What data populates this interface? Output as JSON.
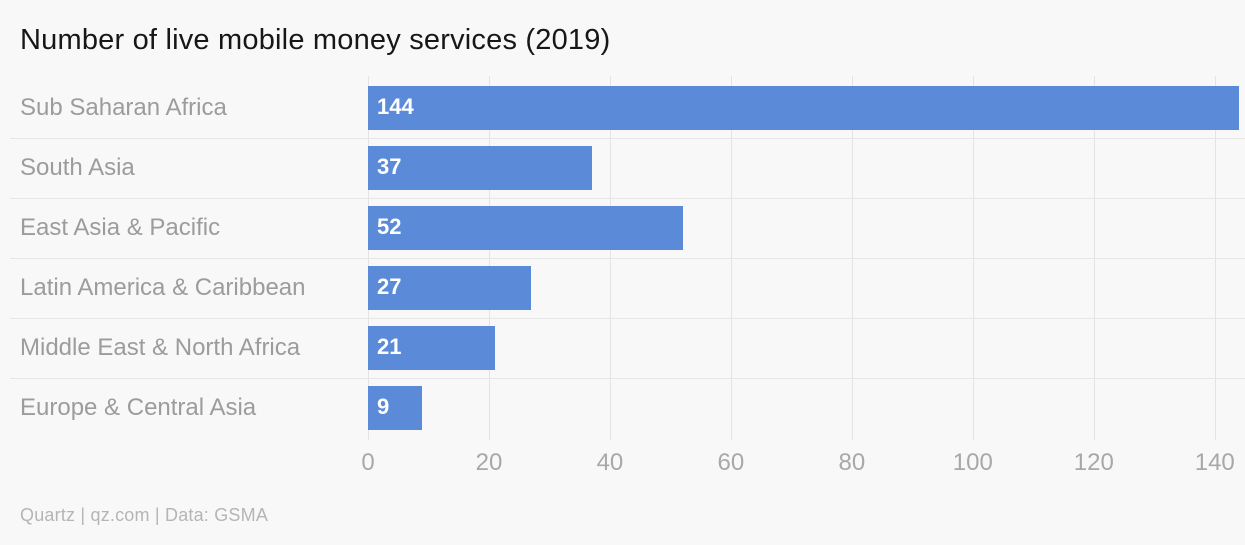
{
  "title": "Number of live mobile money services (2019)",
  "attribution": "Quartz | qz.com | Data: GSMA",
  "colors": {
    "background": "#f8f8f8",
    "bar": "#5b8bd8",
    "title_text": "#171717",
    "category_text": "#9c9c9c",
    "tick_text": "#a8a8a8",
    "attribution_text": "#b5b5b5",
    "gridline": "#e4e4e4",
    "separator": "#e6e6e6",
    "value_text": "#ffffff"
  },
  "chart_data": {
    "type": "bar",
    "orientation": "horizontal",
    "title": "Number of live mobile money services (2019)",
    "categories": [
      "Sub Saharan Africa",
      "South Asia",
      "East Asia & Pacific",
      "Latin America & Caribbean",
      "Middle East & North Africa",
      "Europe & Central Asia"
    ],
    "values": [
      144,
      37,
      52,
      27,
      21,
      9
    ],
    "xlabel": "",
    "ylabel": "",
    "xlim": [
      0,
      145
    ],
    "xticks": [
      0,
      20,
      40,
      60,
      80,
      100,
      120,
      140
    ],
    "grid": "vertical-gridlines-only",
    "legend": "none",
    "value_labels": "inside-left-white-bold",
    "source_note": "Quartz | qz.com | Data: GSMA"
  }
}
